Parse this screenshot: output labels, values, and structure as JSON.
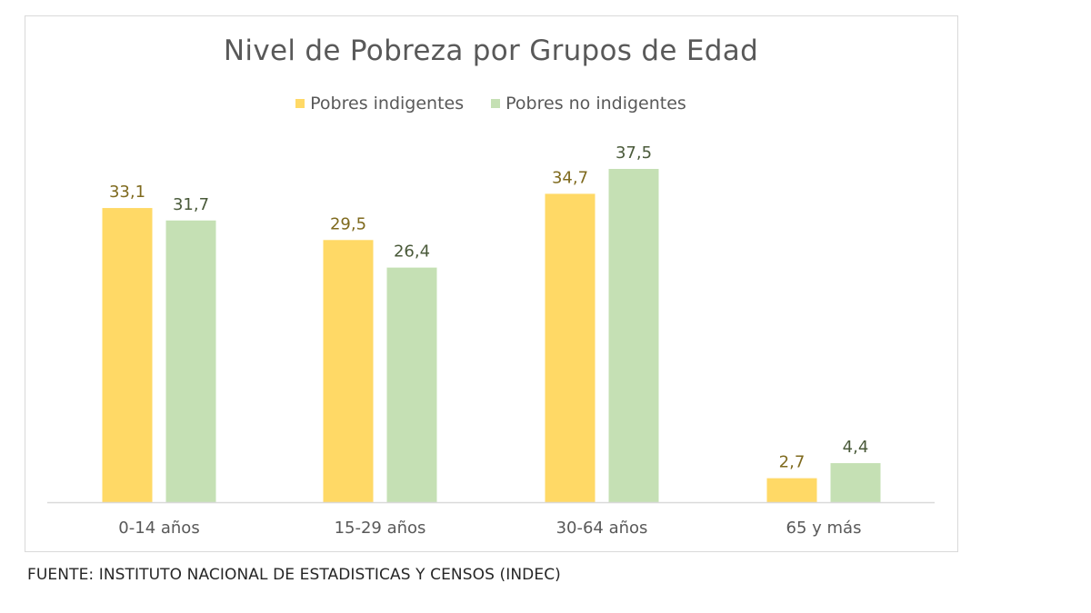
{
  "chart_data": {
    "type": "bar",
    "title": "Nivel de Pobreza por Grupos de Edad",
    "categories": [
      "0-14 años",
      "15-29 años",
      "30-64 años",
      "65 y más"
    ],
    "series": [
      {
        "name": "Pobres indigentes",
        "values": [
          33.1,
          29.5,
          34.7,
          2.7
        ],
        "labels": [
          "33,1",
          "29,5",
          "34,7",
          "2,7"
        ],
        "color": "#ffd966",
        "label_color": "#7f6a1e"
      },
      {
        "name": "Pobres no indigentes",
        "values": [
          31.7,
          26.4,
          37.5,
          4.4
        ],
        "labels": [
          "31,7",
          "26,4",
          "37,5",
          "4,4"
        ],
        "color": "#c5e0b4",
        "label_color": "#4a5a3a"
      }
    ],
    "xlabel": "",
    "ylabel": "",
    "ylim": [
      0,
      37.5
    ],
    "grid": false,
    "legend_position": "top"
  },
  "source": "FUENTE: INSTITUTO NACIONAL DE ESTADISTICAS Y CENSOS (INDEC)"
}
